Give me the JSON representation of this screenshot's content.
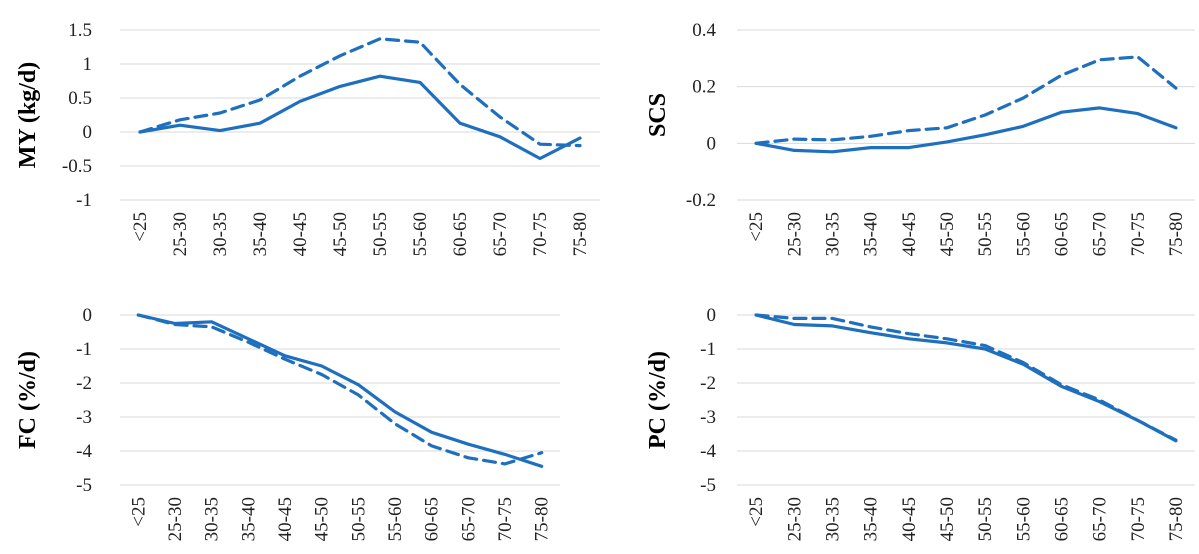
{
  "colors": {
    "series": "#1f6fbf",
    "grid": "#d9d9d9"
  },
  "chart_data": [
    {
      "type": "line",
      "ylabel": "MY (kg/d)",
      "categories": [
        "<25",
        "25-30",
        "30-35",
        "35-40",
        "40-45",
        "45-50",
        "50-55",
        "55-60",
        "60-65",
        "65-70",
        "70-75",
        "75-80"
      ],
      "yticks": [
        "1.5",
        "1",
        "0.5",
        "0",
        "-0.5",
        "-1"
      ],
      "ylim": [
        -1,
        1.5
      ],
      "grid": true,
      "series": [
        {
          "style": "solid",
          "values": [
            0,
            0.1,
            0.02,
            0.13,
            0.45,
            0.67,
            0.82,
            0.73,
            0.13,
            -0.07,
            -0.39,
            -0.09
          ]
        },
        {
          "style": "dashed",
          "values": [
            0,
            0.18,
            0.28,
            0.47,
            0.82,
            1.12,
            1.37,
            1.32,
            0.7,
            0.22,
            -0.18,
            -0.2
          ]
        }
      ]
    },
    {
      "type": "line",
      "ylabel": "SCS",
      "categories": [
        "<25",
        "25-30",
        "30-35",
        "35-40",
        "40-45",
        "45-50",
        "50-55",
        "55-60",
        "60-65",
        "65-70",
        "70-75",
        "75-80"
      ],
      "yticks": [
        "0.4",
        "0.2",
        "0",
        "-0.2"
      ],
      "ylim": [
        -0.2,
        0.4
      ],
      "grid": true,
      "series": [
        {
          "style": "solid",
          "values": [
            0,
            -0.025,
            -0.03,
            -0.015,
            -0.015,
            0.005,
            0.03,
            0.06,
            0.11,
            0.125,
            0.105,
            0.055
          ]
        },
        {
          "style": "dashed",
          "values": [
            0,
            0.015,
            0.012,
            0.025,
            0.045,
            0.055,
            0.1,
            0.16,
            0.24,
            0.295,
            0.305,
            0.195
          ]
        }
      ]
    },
    {
      "type": "line",
      "ylabel": "FC (%/d)",
      "categories": [
        "<25",
        "25-30",
        "30-35",
        "35-40",
        "40-45",
        "45-50",
        "50-55",
        "55-60",
        "60-65",
        "65-70",
        "70-75",
        "75-80"
      ],
      "yticks": [
        "0",
        "-1",
        "-2",
        "-3",
        "-4",
        "-5"
      ],
      "ylim": [
        -5,
        0
      ],
      "grid": true,
      "series": [
        {
          "style": "solid",
          "values": [
            0,
            -0.25,
            -0.2,
            -0.7,
            -1.2,
            -1.5,
            -2.05,
            -2.85,
            -3.45,
            -3.8,
            -4.1,
            -4.45
          ]
        },
        {
          "style": "dashed",
          "values": [
            0,
            -0.28,
            -0.35,
            -0.8,
            -1.3,
            -1.75,
            -2.35,
            -3.2,
            -3.85,
            -4.2,
            -4.38,
            -4.05
          ]
        }
      ]
    },
    {
      "type": "line",
      "ylabel": "PC (%/d)",
      "categories": [
        "<25",
        "25-30",
        "30-35",
        "35-40",
        "40-45",
        "45-50",
        "50-55",
        "55-60",
        "60-65",
        "65-70",
        "70-75",
        "75-80"
      ],
      "yticks": [
        "0",
        "-1",
        "-2",
        "-3",
        "-4",
        "-5"
      ],
      "ylim": [
        -5,
        0
      ],
      "grid": true,
      "series": [
        {
          "style": "solid",
          "values": [
            0,
            -0.28,
            -0.32,
            -0.52,
            -0.7,
            -0.82,
            -1.0,
            -1.45,
            -2.1,
            -2.55,
            -3.1,
            -3.7
          ]
        },
        {
          "style": "dashed",
          "values": [
            0,
            -0.1,
            -0.1,
            -0.35,
            -0.55,
            -0.7,
            -0.9,
            -1.4,
            -2.05,
            -2.5,
            -3.1,
            -3.68
          ]
        }
      ]
    }
  ]
}
